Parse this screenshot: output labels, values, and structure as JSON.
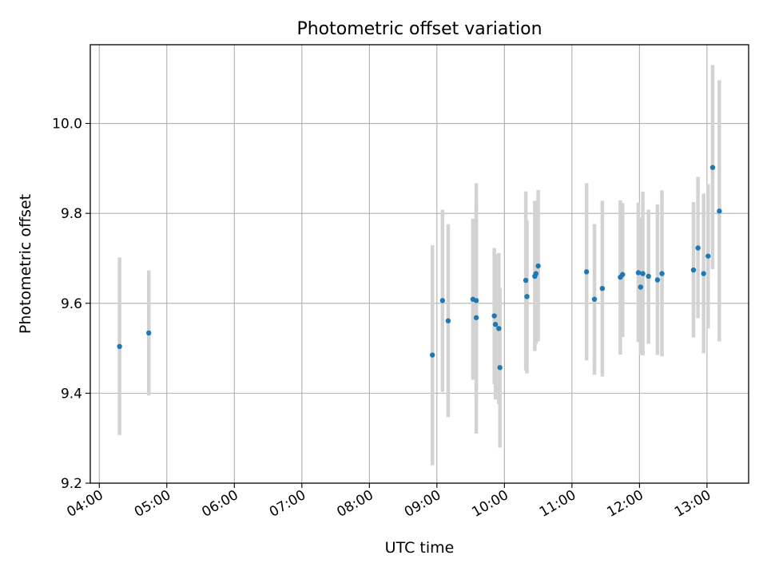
{
  "chart_data": {
    "type": "scatter",
    "title": "Photometric offset variation",
    "xlabel": "UTC time",
    "ylabel": "Photometric offset",
    "x_unit": "UTC time (HH:MM)",
    "xlim": [
      "03:52",
      "13:37"
    ],
    "ylim": [
      9.2,
      10.175
    ],
    "x_ticks": [
      "04:00",
      "05:00",
      "06:00",
      "07:00",
      "08:00",
      "09:00",
      "10:00",
      "11:00",
      "12:00",
      "13:00"
    ],
    "y_ticks": [
      "9.2",
      "9.4",
      "9.6",
      "9.8",
      "10.0"
    ],
    "grid": true,
    "marker_color": "#1f77b4",
    "errorbar_color": "#d3d3d3",
    "series": [
      {
        "points": [
          {
            "x": "04:18",
            "y": 9.504,
            "err_low": 9.307,
            "err_high": 9.702
          },
          {
            "x": "04:44",
            "y": 9.534,
            "err_low": 9.395,
            "err_high": 9.673
          },
          {
            "x": "08:56",
            "y": 9.485,
            "err_low": 9.24,
            "err_high": 9.729
          },
          {
            "x": "09:05",
            "y": 9.606,
            "err_low": 9.403,
            "err_high": 9.808
          },
          {
            "x": "09:10",
            "y": 9.561,
            "err_low": 9.347,
            "err_high": 9.776
          },
          {
            "x": "09:32",
            "y": 9.609,
            "err_low": 9.43,
            "err_high": 9.788
          },
          {
            "x": "09:35",
            "y": 9.606,
            "err_low": 9.387,
            "err_high": 9.825
          },
          {
            "x": "09:35",
            "y": 9.568,
            "err_low": 9.31,
            "err_high": 9.867
          },
          {
            "x": "09:51",
            "y": 9.572,
            "err_low": 9.42,
            "err_high": 9.723
          },
          {
            "x": "09:52",
            "y": 9.553,
            "err_low": 9.386,
            "err_high": 9.709
          },
          {
            "x": "09:55",
            "y": 9.544,
            "err_low": 9.376,
            "err_high": 9.712
          },
          {
            "x": "09:56",
            "y": 9.457,
            "err_low": 9.279,
            "err_high": 9.634
          },
          {
            "x": "10:19",
            "y": 9.651,
            "err_low": 9.451,
            "err_high": 9.849
          },
          {
            "x": "10:20",
            "y": 9.615,
            "err_low": 9.444,
            "err_high": 9.785
          },
          {
            "x": "10:27",
            "y": 9.66,
            "err_low": 9.494,
            "err_high": 9.828
          },
          {
            "x": "10:28",
            "y": 9.666,
            "err_low": 9.51,
            "err_high": 9.818
          },
          {
            "x": "10:30",
            "y": 9.683,
            "err_low": 9.515,
            "err_high": 9.852
          },
          {
            "x": "11:13",
            "y": 9.67,
            "err_low": 9.473,
            "err_high": 9.867
          },
          {
            "x": "11:20",
            "y": 9.609,
            "err_low": 9.441,
            "err_high": 9.776
          },
          {
            "x": "11:27",
            "y": 9.633,
            "err_low": 9.437,
            "err_high": 9.828
          },
          {
            "x": "11:43",
            "y": 9.658,
            "err_low": 9.486,
            "err_high": 9.829
          },
          {
            "x": "11:45",
            "y": 9.664,
            "err_low": 9.525,
            "err_high": 9.823
          },
          {
            "x": "11:59",
            "y": 9.668,
            "err_low": 9.514,
            "err_high": 9.824
          },
          {
            "x": "12:01",
            "y": 9.636,
            "err_low": 9.486,
            "err_high": 9.79
          },
          {
            "x": "12:03",
            "y": 9.666,
            "err_low": 9.484,
            "err_high": 9.848
          },
          {
            "x": "12:08",
            "y": 9.66,
            "err_low": 9.51,
            "err_high": 9.808
          },
          {
            "x": "12:16",
            "y": 9.652,
            "err_low": 9.485,
            "err_high": 9.82
          },
          {
            "x": "12:20",
            "y": 9.666,
            "err_low": 9.482,
            "err_high": 9.851
          },
          {
            "x": "12:48",
            "y": 9.674,
            "err_low": 9.524,
            "err_high": 9.825
          },
          {
            "x": "12:52",
            "y": 9.723,
            "err_low": 9.567,
            "err_high": 9.881
          },
          {
            "x": "12:57",
            "y": 9.666,
            "err_low": 9.489,
            "err_high": 9.844
          },
          {
            "x": "13:01",
            "y": 9.705,
            "err_low": 9.544,
            "err_high": 9.865
          },
          {
            "x": "13:05",
            "y": 9.902,
            "err_low": 9.676,
            "err_high": 10.13
          },
          {
            "x": "13:11",
            "y": 9.805,
            "err_low": 9.515,
            "err_high": 10.096
          }
        ]
      }
    ]
  }
}
